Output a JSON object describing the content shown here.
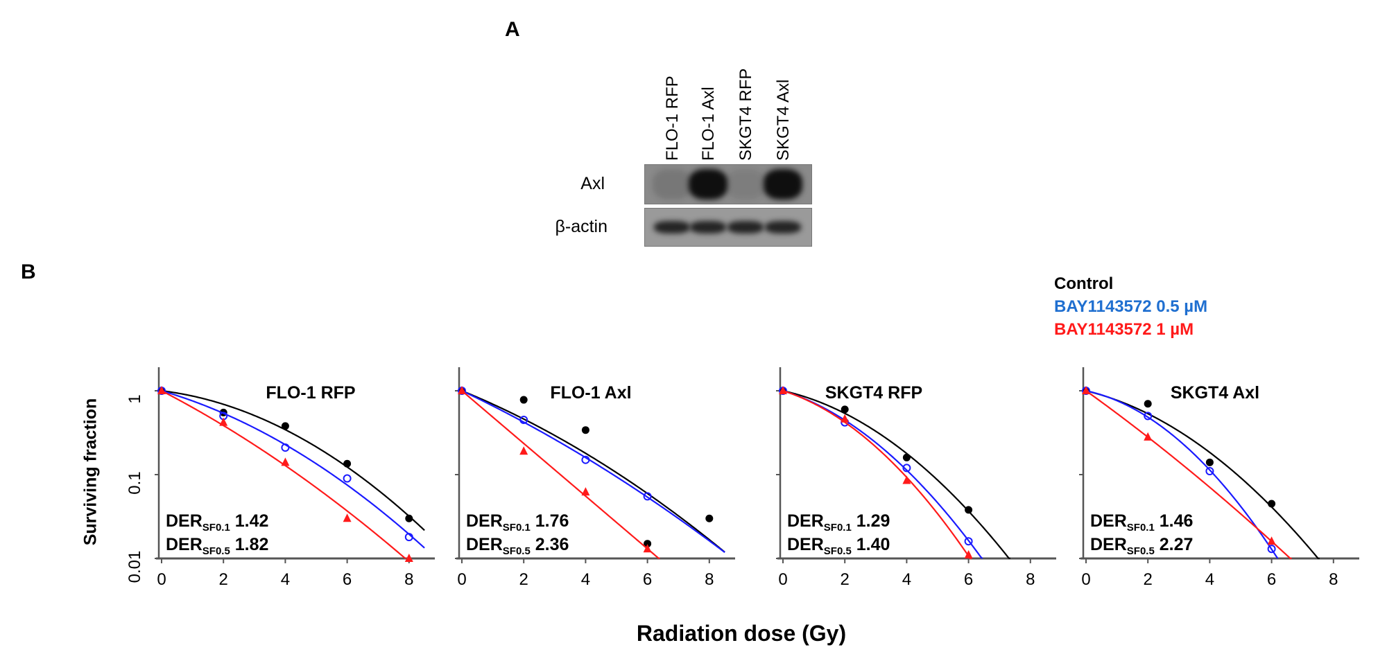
{
  "panel_a": {
    "letter": "A",
    "lanes": [
      "FLO-1 RFP",
      "FLO-1 Axl",
      "SKGT4 RFP",
      "SKGT4 Axl"
    ],
    "blots": [
      {
        "label": "Axl",
        "band_intensity": [
          0.15,
          1.0,
          0.1,
          1.0
        ]
      },
      {
        "label": "β-actin",
        "band_intensity": [
          0.85,
          0.85,
          0.85,
          0.85
        ]
      }
    ]
  },
  "panel_b": {
    "letter": "B",
    "xlabel": "Radiation dose (Gy)",
    "ylabel": "Surviving fraction",
    "legend": [
      {
        "name": "Control",
        "color": "#000000"
      },
      {
        "name": "BAY1143572 0.5 µM",
        "color": "#1f6fd0"
      },
      {
        "name": "BAY1143572 1 µM",
        "color": "#ff1a1a"
      }
    ]
  },
  "chart_data": [
    {
      "type": "line",
      "title": "FLO-1 RFP",
      "yscale": "log",
      "xlim": [
        0,
        8.5
      ],
      "ylim": [
        0.01,
        1.4
      ],
      "xticks": [
        "0",
        "2",
        "4",
        "6",
        "8"
      ],
      "yticks": [
        "1",
        "0.1",
        "0.01"
      ],
      "der": [
        {
          "label": "DER",
          "sub": "SF0.1",
          "value": "1.42"
        },
        {
          "label": "DER",
          "sub": "SF0.5",
          "value": "1.82"
        }
      ],
      "series": [
        {
          "name": "Control",
          "color": "#000000",
          "x": [
            0,
            2,
            4,
            6,
            8
          ],
          "y": [
            1,
            0.55,
            0.38,
            0.135,
            0.03
          ]
        },
        {
          "name": "BAY1143572 0.5 µM",
          "color": "#1a1aff",
          "x": [
            0,
            2,
            4,
            6,
            8
          ],
          "y": [
            1,
            0.5,
            0.21,
            0.09,
            0.018
          ]
        },
        {
          "name": "BAY1143572 1 µM",
          "color": "#ff1a1a",
          "x": [
            0,
            2,
            4,
            6,
            8
          ],
          "y": [
            1,
            0.42,
            0.14,
            0.03,
            0.01
          ]
        }
      ]
    },
    {
      "type": "line",
      "title": "FLO-1 Axl",
      "yscale": "log",
      "xlim": [
        0,
        8.5
      ],
      "ylim": [
        0.01,
        1.4
      ],
      "xticks": [
        "0",
        "2",
        "4",
        "6",
        "8"
      ],
      "yticks": [],
      "der": [
        {
          "label": "DER",
          "sub": "SF0.1",
          "value": "1.76"
        },
        {
          "label": "DER",
          "sub": "SF0.5",
          "value": "2.36"
        }
      ],
      "series": [
        {
          "name": "Control",
          "color": "#000000",
          "x": [
            0,
            2,
            4,
            6,
            8
          ],
          "y": [
            1,
            0.78,
            0.34,
            0.015,
            0.03
          ]
        },
        {
          "name": "BAY1143572 0.5 µM",
          "color": "#1a1aff",
          "x": [
            0,
            2,
            4,
            6
          ],
          "y": [
            1,
            0.45,
            0.15,
            0.055
          ]
        },
        {
          "name": "BAY1143572 1 µM",
          "color": "#ff1a1a",
          "x": [
            0,
            2,
            4,
            6
          ],
          "y": [
            1,
            0.19,
            0.062,
            0.013
          ]
        }
      ]
    },
    {
      "type": "line",
      "title": "SKGT4 RFP",
      "yscale": "log",
      "xlim": [
        0,
        8.5
      ],
      "ylim": [
        0.01,
        1.4
      ],
      "xticks": [
        "0",
        "2",
        "4",
        "6",
        "8"
      ],
      "yticks": [],
      "der": [
        {
          "label": "DER",
          "sub": "SF0.1",
          "value": "1.29"
        },
        {
          "label": "DER",
          "sub": "SF0.5",
          "value": "1.40"
        }
      ],
      "series": [
        {
          "name": "Control",
          "color": "#000000",
          "x": [
            0,
            2,
            4,
            6
          ],
          "y": [
            1,
            0.6,
            0.16,
            0.038
          ]
        },
        {
          "name": "BAY1143572 0.5 µM",
          "color": "#1a1aff",
          "x": [
            0,
            2,
            4,
            6
          ],
          "y": [
            1,
            0.42,
            0.12,
            0.016
          ]
        },
        {
          "name": "BAY1143572 1 µM",
          "color": "#ff1a1a",
          "x": [
            0,
            2,
            4,
            6
          ],
          "y": [
            1,
            0.46,
            0.085,
            0.011
          ]
        }
      ]
    },
    {
      "type": "line",
      "title": "SKGT4 Axl",
      "yscale": "log",
      "xlim": [
        0,
        8.5
      ],
      "ylim": [
        0.01,
        1.4
      ],
      "xticks": [
        "0",
        "2",
        "4",
        "6",
        "8"
      ],
      "yticks": [],
      "der": [
        {
          "label": "DER",
          "sub": "SF0.1",
          "value": "1.46"
        },
        {
          "label": "DER",
          "sub": "SF0.5",
          "value": "2.27"
        }
      ],
      "series": [
        {
          "name": "Control",
          "color": "#000000",
          "x": [
            0,
            2,
            4,
            6
          ],
          "y": [
            1,
            0.7,
            0.14,
            0.045
          ]
        },
        {
          "name": "BAY1143572 0.5 µM",
          "color": "#1a1aff",
          "x": [
            0,
            2,
            4,
            6
          ],
          "y": [
            1,
            0.5,
            0.11,
            0.013
          ]
        },
        {
          "name": "BAY1143572 1 µM",
          "color": "#ff1a1a",
          "x": [
            0,
            2,
            6
          ],
          "y": [
            1,
            0.28,
            0.016
          ]
        }
      ]
    }
  ]
}
